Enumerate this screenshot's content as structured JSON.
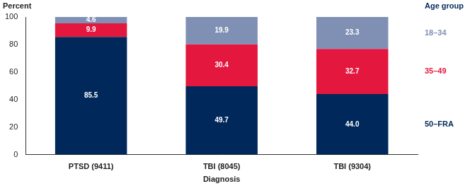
{
  "chart_data": {
    "type": "bar",
    "stacked": true,
    "categories": [
      "PTSD (9411)",
      "TBI (8045)",
      "TBI (9304)"
    ],
    "series": [
      {
        "name": "50–FRA",
        "color": "#00285a",
        "values": [
          85.5,
          49.7,
          44.0
        ],
        "value_labels": [
          "85.5",
          "49.7",
          "44.0"
        ]
      },
      {
        "name": "35–49",
        "color": "#e4173e",
        "values": [
          9.9,
          30.4,
          32.7
        ],
        "value_labels": [
          "9.9",
          "30.4",
          "32.7"
        ]
      },
      {
        "name": "18–34",
        "color": "#8090b4",
        "values": [
          4.6,
          19.9,
          23.3
        ],
        "value_labels": [
          "4.6",
          "19.9",
          "23.3"
        ]
      }
    ],
    "x_label": "Diagnosis",
    "y_label": "Percent",
    "legend_title": "Age group",
    "legend": "right",
    "ylim": [
      0,
      100
    ],
    "yticks": [
      0,
      20,
      40,
      60,
      80,
      100
    ],
    "grid": false,
    "data_labels": true
  }
}
